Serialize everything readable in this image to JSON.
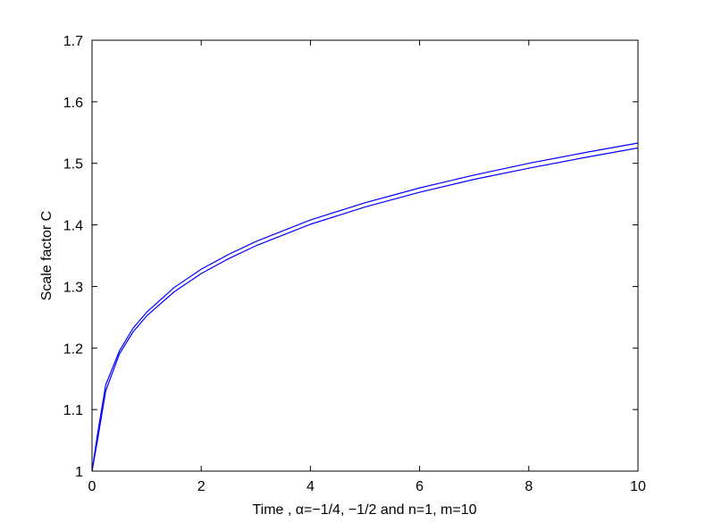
{
  "chart_data": {
    "type": "line",
    "title": "",
    "xlabel": "Time , α=−1/4, −1/2 and n=1, m=10",
    "ylabel": "Scale factor C",
    "xlim": [
      0,
      10
    ],
    "ylim": [
      1,
      1.7
    ],
    "x_ticks": [
      0,
      2,
      4,
      6,
      8,
      10
    ],
    "y_ticks": [
      1,
      1.1,
      1.2,
      1.3,
      1.4,
      1.5,
      1.6,
      1.7
    ],
    "x_tick_labels": [
      "0",
      "2",
      "4",
      "6",
      "8",
      "10"
    ],
    "y_tick_labels": [
      "1",
      "1.1",
      "1.2",
      "1.3",
      "1.4",
      "1.5",
      "1.6",
      "1.7"
    ],
    "grid": false,
    "legend": "none",
    "line_color": "#0000ff",
    "series": [
      {
        "x": [
          0,
          0.1,
          0.25,
          0.5,
          0.75,
          1,
          1.5,
          2,
          2.5,
          3,
          4,
          5,
          6,
          7,
          8,
          9,
          10
        ],
        "y": [
          1.0,
          1.06,
          1.14,
          1.195,
          1.232,
          1.258,
          1.298,
          1.328,
          1.352,
          1.373,
          1.408,
          1.436,
          1.46,
          1.481,
          1.5,
          1.517,
          1.533
        ]
      },
      {
        "x": [
          0,
          0.1,
          0.25,
          0.5,
          0.75,
          1,
          1.5,
          2,
          2.5,
          3,
          4,
          5,
          6,
          7,
          8,
          9,
          10
        ],
        "y": [
          1.0,
          1.05,
          1.13,
          1.19,
          1.226,
          1.252,
          1.291,
          1.321,
          1.345,
          1.366,
          1.401,
          1.429,
          1.453,
          1.474,
          1.492,
          1.509,
          1.525
        ]
      }
    ]
  }
}
